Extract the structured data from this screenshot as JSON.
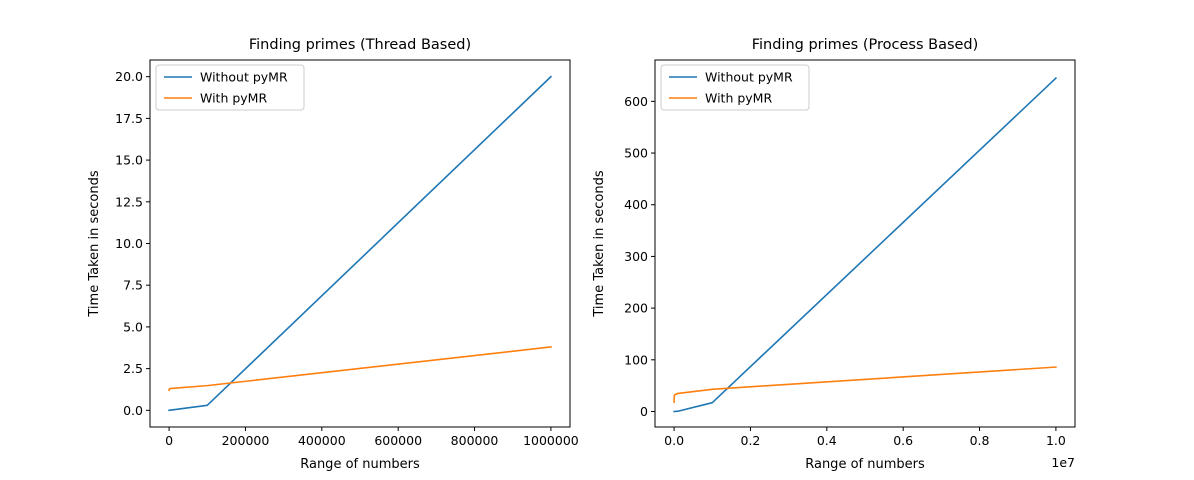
{
  "chart_data": [
    {
      "type": "line",
      "title": "Finding primes (Thread Based)",
      "xlabel": "Range of numbers",
      "ylabel": "Time Taken in seconds",
      "xlim": [
        -50000,
        1050000
      ],
      "ylim": [
        -1.0,
        21.0
      ],
      "x_ticks": [
        0,
        200000,
        400000,
        600000,
        800000,
        1000000
      ],
      "x_tick_labels": [
        "0",
        "200000",
        "400000",
        "600000",
        "800000",
        "1000000"
      ],
      "y_ticks": [
        0,
        2.5,
        5,
        7.5,
        10,
        12.5,
        15,
        17.5,
        20
      ],
      "y_tick_labels": [
        "0.0",
        "2.5",
        "5.0",
        "7.5",
        "10.0",
        "12.5",
        "15.0",
        "17.5",
        "20.0"
      ],
      "x_offset_label": "",
      "legend_position": "top-left",
      "grid": false,
      "series": [
        {
          "name": "Without pyMR",
          "color": "#1f77b4",
          "x": [
            0,
            100000,
            1000000
          ],
          "y": [
            0.0,
            0.3,
            20.0
          ]
        },
        {
          "name": "With pyMR",
          "color": "#ff7f0e",
          "x": [
            0,
            1000,
            10000,
            100000,
            1000000
          ],
          "y": [
            1.2,
            1.3,
            1.32,
            1.48,
            3.8
          ]
        }
      ]
    },
    {
      "type": "line",
      "title": "Finding primes (Process Based)",
      "xlabel": "Range of numbers",
      "ylabel": "Time Taken in seconds",
      "xlim": [
        -0.05,
        1.05
      ],
      "ylim": [
        -30,
        680
      ],
      "x_ticks": [
        0,
        0.2,
        0.4,
        0.6,
        0.8,
        1.0
      ],
      "x_tick_labels": [
        "0.0",
        "0.2",
        "0.4",
        "0.6",
        "0.8",
        "1.0"
      ],
      "y_ticks": [
        0,
        100,
        200,
        300,
        400,
        500,
        600
      ],
      "y_tick_labels": [
        "0",
        "100",
        "200",
        "300",
        "400",
        "500",
        "600"
      ],
      "x_offset_label": "1e7",
      "legend_position": "top-left",
      "grid": false,
      "series": [
        {
          "name": "Without pyMR",
          "color": "#1f77b4",
          "x": [
            0,
            0.01,
            0.1,
            1.0
          ],
          "y": [
            0,
            0.5,
            17,
            645
          ]
        },
        {
          "name": "With pyMR",
          "color": "#ff7f0e",
          "x": [
            0,
            0.0001,
            0.001,
            0.01,
            0.1,
            1.0
          ],
          "y": [
            18,
            25,
            32,
            35,
            43,
            86
          ]
        }
      ]
    }
  ]
}
